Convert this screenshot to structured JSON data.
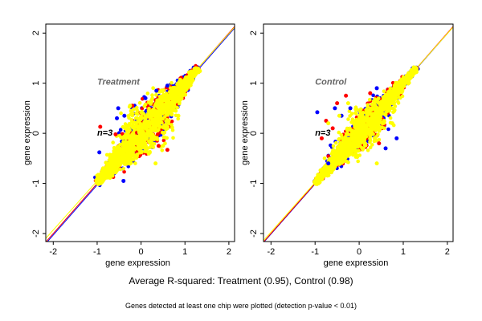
{
  "chart_data": [
    {
      "type": "scatter",
      "title": "Treatment",
      "annotation": "n=3",
      "xlabel": "gene expression",
      "ylabel": "gene expression",
      "xlim": [
        -2.17,
        2.13
      ],
      "ylim": [
        -2.16,
        2.18
      ],
      "xticks": [
        "-2",
        "-1",
        "0",
        "1",
        "2"
      ],
      "yticks": [
        "-2",
        "-1",
        "0",
        "1",
        "2"
      ],
      "grid": false,
      "series_colors": [
        "#0000ff",
        "#ff0000",
        "#ffff00"
      ],
      "fit_lines": [
        {
          "color": "#0000ff",
          "slope": 1.0,
          "intercept": -0.03
        },
        {
          "color": "#ff0000",
          "slope": 1.0,
          "intercept": 0.0
        },
        {
          "color": "#ffff00",
          "slope": 0.98,
          "intercept": 0.03
        }
      ],
      "core_range": [
        -1.0,
        1.3
      ],
      "outliers": [
        {
          "series": 0,
          "x": -0.52,
          "y": 0.5
        },
        {
          "series": 0,
          "x": -0.55,
          "y": 0.3
        },
        {
          "series": 0,
          "x": -0.38,
          "y": 0.35
        },
        {
          "series": 0,
          "x": 0.35,
          "y": 0.85
        },
        {
          "series": 0,
          "x": 0.1,
          "y": 0.7
        },
        {
          "series": 0,
          "x": -0.95,
          "y": -0.38
        },
        {
          "series": 0,
          "x": 0.6,
          "y": 0.95
        },
        {
          "series": 0,
          "x": -0.4,
          "y": -0.95
        },
        {
          "series": 1,
          "x": -0.93,
          "y": 0.13
        },
        {
          "series": 1,
          "x": 0.6,
          "y": -0.33
        },
        {
          "series": 1,
          "x": -0.2,
          "y": 0.55
        },
        {
          "series": 1,
          "x": -0.58,
          "y": -0.02
        },
        {
          "series": 1,
          "x": 0.4,
          "y": -0.25
        },
        {
          "series": 2,
          "x": 0.33,
          "y": -0.6
        },
        {
          "series": 2,
          "x": 0.5,
          "y": -0.25
        },
        {
          "series": 2,
          "x": 0.85,
          "y": 0.35
        },
        {
          "series": 2,
          "x": 0.6,
          "y": 0.1
        },
        {
          "series": 2,
          "x": -0.25,
          "y": 0.55
        }
      ]
    },
    {
      "type": "scatter",
      "title": "Control",
      "annotation": "n=3",
      "xlabel": "gene expression",
      "ylabel": "gene expression",
      "xlim": [
        -2.17,
        2.13
      ],
      "ylim": [
        -2.16,
        2.18
      ],
      "xticks": [
        "-2",
        "-1",
        "0",
        "1",
        "2"
      ],
      "yticks": [
        "-2",
        "-1",
        "0",
        "1",
        "2"
      ],
      "grid": false,
      "series_colors": [
        "#0000ff",
        "#ff0000",
        "#ffff00"
      ],
      "fit_lines": [
        {
          "color": "#0000ff",
          "slope": 1.0,
          "intercept": -0.01
        },
        {
          "color": "#ff0000",
          "slope": 1.0,
          "intercept": 0.0
        },
        {
          "color": "#ffff00",
          "slope": 0.99,
          "intercept": 0.01
        }
      ],
      "core_range": [
        -1.0,
        1.3
      ],
      "outliers": [
        {
          "series": 0,
          "x": -0.95,
          "y": 0.42
        },
        {
          "series": 0,
          "x": -0.55,
          "y": 0.5
        },
        {
          "series": 0,
          "x": -0.4,
          "y": 0.35
        },
        {
          "series": 0,
          "x": -0.2,
          "y": 0.5
        },
        {
          "series": 0,
          "x": 0.4,
          "y": 0.9
        },
        {
          "series": 0,
          "x": 0.85,
          "y": -0.1
        },
        {
          "series": 0,
          "x": 0.6,
          "y": -0.3
        },
        {
          "series": 0,
          "x": -0.7,
          "y": -0.6
        },
        {
          "series": 1,
          "x": -0.75,
          "y": 0.25
        },
        {
          "series": 1,
          "x": -0.5,
          "y": 0.6
        },
        {
          "series": 1,
          "x": -0.3,
          "y": 0.75
        },
        {
          "series": 1,
          "x": -0.85,
          "y": -0.1
        },
        {
          "series": 1,
          "x": 0.25,
          "y": 0.8
        },
        {
          "series": 1,
          "x": -0.6,
          "y": 0.1
        },
        {
          "series": 1,
          "x": 0.45,
          "y": -0.2
        },
        {
          "series": 2,
          "x": -0.45,
          "y": 0.35
        },
        {
          "series": 2,
          "x": -0.25,
          "y": 0.6
        },
        {
          "series": 2,
          "x": 0.4,
          "y": -0.6
        },
        {
          "series": 2,
          "x": 0.75,
          "y": 0.2
        },
        {
          "series": 2,
          "x": -0.7,
          "y": 0.2
        }
      ]
    }
  ],
  "caption": "Average R-squared: Treatment (0.95), Control (0.98)",
  "footnote": "Genes detected at least one chip were plotted (detection p-value < 0.01)"
}
